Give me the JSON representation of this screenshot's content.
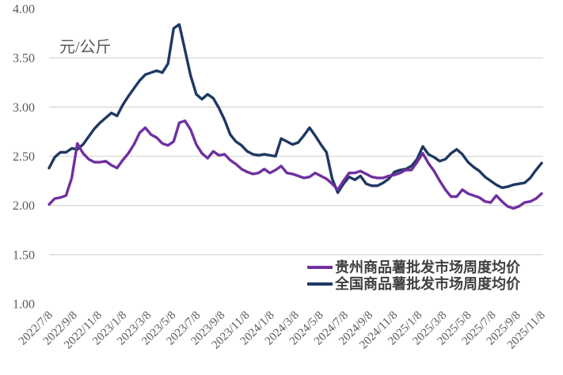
{
  "chart_data": {
    "type": "line",
    "title": "",
    "unit_label": "元/公斤",
    "grid": "horizontal",
    "legend_position": "inside-bottom-right",
    "y_axis": {
      "min": 1.0,
      "max": 4.0,
      "tick_step": 0.5,
      "tick_labels": [
        "4.00",
        "3.50",
        "3.00",
        "2.50",
        "2.00",
        "1.50",
        "1.00"
      ],
      "gridline_values": [
        3.5,
        3.0,
        2.5,
        2.0,
        1.5
      ]
    },
    "x_axis": {
      "tick_labels": [
        "2022/7/8",
        "2022/9/8",
        "2022/11/8",
        "2023/1/8",
        "2023/3/8",
        "2023/5/8",
        "2023/7/8",
        "2023/9/8",
        "2023/11/8",
        "2024/1/8",
        "2024/3/8",
        "2024/5/8",
        "2024/7/8",
        "2024/9/8",
        "2024/11/8",
        "2025/1/8",
        "2025/3/8",
        "2025/5/8",
        "2025/7/8",
        "2025/9/8",
        "2025/11/8"
      ]
    },
    "x": [
      "2022/7/8",
      "2022/7/22",
      "2022/8/5",
      "2022/8/19",
      "2022/9/2",
      "2022/9/16",
      "2022/9/30",
      "2022/10/14",
      "2022/10/28",
      "2022/11/11",
      "2022/11/25",
      "2022/12/9",
      "2022/12/23",
      "2023/1/6",
      "2023/1/20",
      "2023/2/3",
      "2023/2/17",
      "2023/3/3",
      "2023/3/17",
      "2023/3/31",
      "2023/4/14",
      "2023/4/28",
      "2023/5/12",
      "2023/5/26",
      "2023/6/9",
      "2023/6/23",
      "2023/7/7",
      "2023/7/21",
      "2023/8/4",
      "2023/8/18",
      "2023/9/1",
      "2023/9/15",
      "2023/9/29",
      "2023/10/13",
      "2023/10/27",
      "2023/11/10",
      "2023/11/24",
      "2023/12/8",
      "2023/12/22",
      "2024/1/5",
      "2024/1/19",
      "2024/2/2",
      "2024/2/16",
      "2024/3/1",
      "2024/3/15",
      "2024/3/29",
      "2024/4/12",
      "2024/4/26",
      "2024/5/10",
      "2024/5/24",
      "2024/6/7",
      "2024/6/21",
      "2024/7/5",
      "2024/7/19",
      "2024/8/2",
      "2024/8/16",
      "2024/8/30",
      "2024/9/13",
      "2024/9/27",
      "2024/10/11",
      "2024/10/25",
      "2024/11/8",
      "2024/11/22",
      "2024/12/6",
      "2024/12/20",
      "2025/1/3",
      "2025/1/17",
      "2025/1/31",
      "2025/2/14",
      "2025/2/28",
      "2025/3/14",
      "2025/3/28",
      "2025/4/11",
      "2025/4/25",
      "2025/5/9",
      "2025/5/23",
      "2025/6/6",
      "2025/6/20",
      "2025/7/4",
      "2025/7/18",
      "2025/8/1",
      "2025/8/15",
      "2025/8/29",
      "2025/9/12",
      "2025/9/26",
      "2025/10/10",
      "2025/10/24",
      "2025/11/7"
    ],
    "series": [
      {
        "name": "贵州商品薯批发市场周度均价",
        "color": "#7030A0",
        "values": [
          2.01,
          2.07,
          2.08,
          2.1,
          2.28,
          2.63,
          2.53,
          2.47,
          2.44,
          2.44,
          2.45,
          2.41,
          2.38,
          2.46,
          2.53,
          2.62,
          2.74,
          2.79,
          2.72,
          2.69,
          2.63,
          2.61,
          2.65,
          2.84,
          2.86,
          2.77,
          2.62,
          2.53,
          2.48,
          2.55,
          2.51,
          2.52,
          2.46,
          2.42,
          2.37,
          2.34,
          2.32,
          2.33,
          2.37,
          2.33,
          2.36,
          2.4,
          2.33,
          2.32,
          2.3,
          2.28,
          2.29,
          2.33,
          2.3,
          2.27,
          2.22,
          2.16,
          2.25,
          2.33,
          2.33,
          2.35,
          2.32,
          2.29,
          2.28,
          2.28,
          2.3,
          2.31,
          2.33,
          2.36,
          2.36,
          2.44,
          2.53,
          2.43,
          2.35,
          2.25,
          2.16,
          2.09,
          2.09,
          2.16,
          2.12,
          2.1,
          2.08,
          2.04,
          2.03,
          2.1,
          2.04,
          1.99,
          1.97,
          1.99,
          2.03,
          2.04,
          2.07,
          2.12
        ]
      },
      {
        "name": "全国商品薯批发市场周度均价",
        "color": "#1F3864",
        "values": [
          2.38,
          2.49,
          2.54,
          2.54,
          2.58,
          2.57,
          2.62,
          2.7,
          2.78,
          2.84,
          2.89,
          2.94,
          2.91,
          3.02,
          3.11,
          3.19,
          3.27,
          3.33,
          3.35,
          3.37,
          3.35,
          3.44,
          3.8,
          3.84,
          3.58,
          3.32,
          3.13,
          3.08,
          3.13,
          3.09,
          2.99,
          2.87,
          2.72,
          2.65,
          2.61,
          2.55,
          2.52,
          2.51,
          2.52,
          2.51,
          2.5,
          2.68,
          2.65,
          2.62,
          2.64,
          2.71,
          2.79,
          2.71,
          2.62,
          2.54,
          2.27,
          2.13,
          2.22,
          2.29,
          2.26,
          2.3,
          2.22,
          2.2,
          2.2,
          2.23,
          2.27,
          2.34,
          2.36,
          2.37,
          2.4,
          2.47,
          2.6,
          2.52,
          2.49,
          2.45,
          2.47,
          2.53,
          2.57,
          2.52,
          2.44,
          2.39,
          2.35,
          2.29,
          2.25,
          2.21,
          2.18,
          2.19,
          2.21,
          2.22,
          2.23,
          2.28,
          2.36,
          2.43
        ]
      }
    ]
  },
  "colors": {
    "background": "#FFFFFF",
    "gridline": "#D9D9D9",
    "axis_text": "#595959",
    "legend_text": "#404040",
    "series_guizhou": "#7030A0",
    "series_national": "#1F3864"
  }
}
